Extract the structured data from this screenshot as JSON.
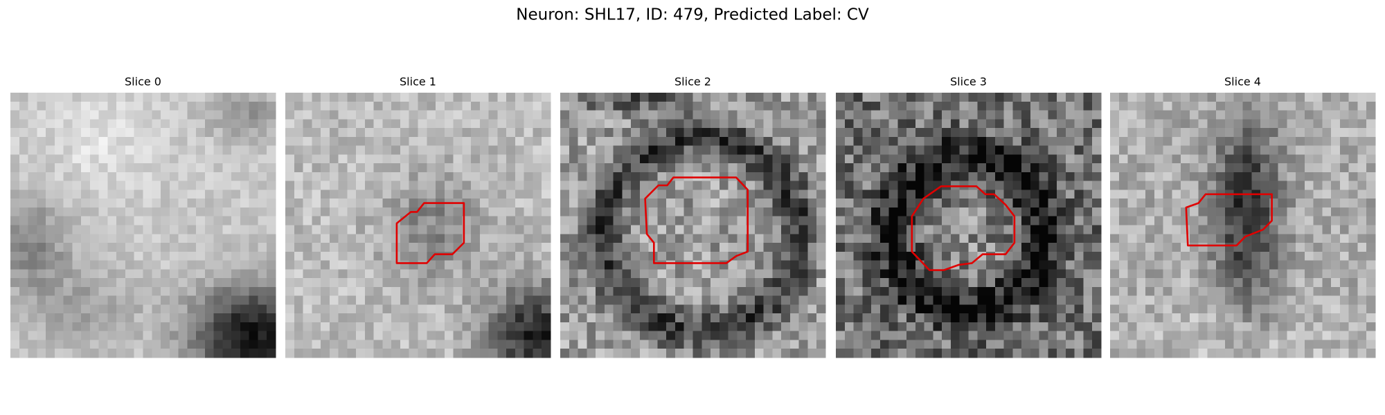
{
  "title": "Neuron: SHL17, ID: 479, Predicted Label: CV",
  "panels": [
    {
      "title": "Slice 0"
    },
    {
      "title": "Slice 1"
    },
    {
      "title": "Slice 2"
    },
    {
      "title": "Slice 3"
    },
    {
      "title": "Slice 4"
    }
  ]
}
